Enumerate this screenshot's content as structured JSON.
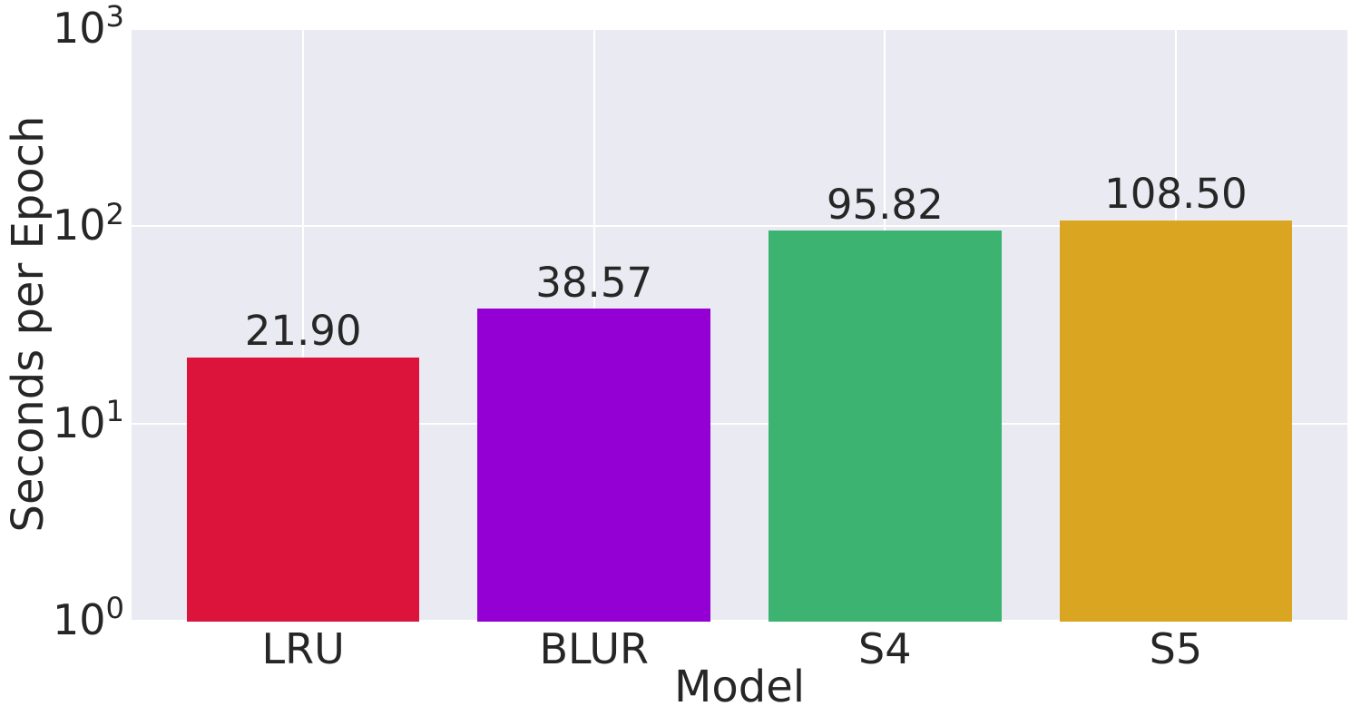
{
  "chart_data": {
    "type": "bar",
    "title": "",
    "xlabel": "Model",
    "ylabel": "Seconds per Epoch",
    "categories": [
      "LRU",
      "BLUR",
      "S4",
      "S5"
    ],
    "values": [
      21.9,
      38.57,
      95.82,
      108.5
    ],
    "value_labels": [
      "21.90",
      "38.57",
      "95.82",
      "108.50"
    ],
    "bar_colors": [
      "#dc143c",
      "#9400d3",
      "#3cb371",
      "#daa520"
    ],
    "yscale": "log",
    "ylim": [
      1,
      1000
    ],
    "ytick_exponents": [
      0,
      1,
      2,
      3
    ],
    "ytick_base": "10",
    "grid": true,
    "legend": null,
    "plot_background": "#eaeaf2",
    "grid_color": "#ffffff",
    "text_color": "#262626",
    "figure_background": "#ffffff"
  }
}
